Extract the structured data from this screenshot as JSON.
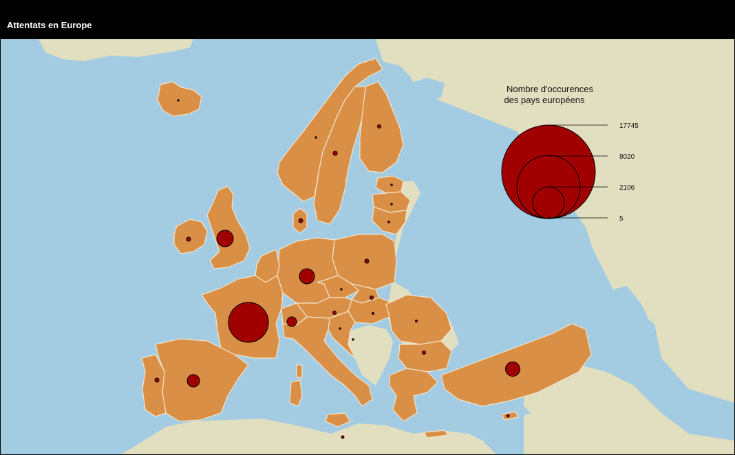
{
  "header": {
    "title": "Attentats en Europe"
  },
  "legend": {
    "title_lines": [
      "Nombre d'occurences",
      "des pays européens"
    ],
    "values": [
      17745,
      8020,
      2106,
      5
    ],
    "labels": [
      "17745",
      "8020",
      "2106",
      "5"
    ]
  },
  "colors": {
    "sea": "#a3cce2",
    "land_other": "#e1dfc0",
    "land_europe": "#d98f45",
    "border": "#f3e5cf",
    "bubble": "#a00000",
    "header_bg": "#000000"
  },
  "map_data": {
    "type": "proportional-symbol-map",
    "region": "Europe",
    "marker_shape": "circle",
    "scale": "circle area proportional to count"
  }
}
